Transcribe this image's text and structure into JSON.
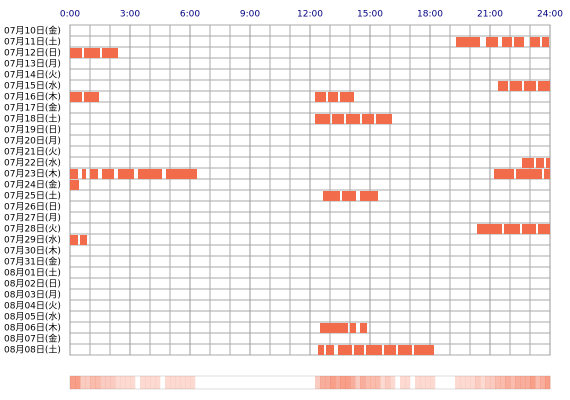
{
  "chart_data": {
    "type": "timeline",
    "xlim": [
      0,
      24
    ],
    "xticks": [
      {
        "value": 0,
        "label": "0:00"
      },
      {
        "value": 3,
        "label": "3:00"
      },
      {
        "value": 6,
        "label": "6:00"
      },
      {
        "value": 9,
        "label": "9:00"
      },
      {
        "value": 12,
        "label": "12:00"
      },
      {
        "value": 15,
        "label": "15:00"
      },
      {
        "value": 18,
        "label": "18:00"
      },
      {
        "value": 21,
        "label": "21:00"
      },
      {
        "value": 24,
        "label": "24:00"
      }
    ],
    "color": "#f26b4a",
    "grid": true,
    "rows": [
      {
        "label": "07月10日(金)",
        "segments": []
      },
      {
        "label": "07月11日(土)",
        "segments": [
          [
            19.3,
            20.5
          ],
          [
            20.8,
            21.4
          ],
          [
            21.6,
            22.1
          ],
          [
            22.2,
            22.7
          ],
          [
            23.0,
            23.5
          ],
          [
            23.6,
            23.95
          ]
        ]
      },
      {
        "label": "07月12日(日)",
        "segments": [
          [
            0,
            0.6
          ],
          [
            0.7,
            1.5
          ],
          [
            1.6,
            2.4
          ]
        ]
      },
      {
        "label": "07月13日(月)",
        "segments": []
      },
      {
        "label": "07月14日(火)",
        "segments": []
      },
      {
        "label": "07月15日(水)",
        "segments": [
          [
            21.4,
            21.9
          ],
          [
            22.0,
            22.6
          ],
          [
            22.7,
            23.3
          ],
          [
            23.4,
            24
          ]
        ]
      },
      {
        "label": "07月16日(木)",
        "segments": [
          [
            0,
            0.6
          ],
          [
            0.7,
            1.45
          ],
          [
            12.25,
            12.8
          ],
          [
            12.9,
            13.4
          ],
          [
            13.5,
            14.2
          ]
        ]
      },
      {
        "label": "07月17日(金)",
        "segments": []
      },
      {
        "label": "07月18日(土)",
        "segments": [
          [
            12.25,
            13.0
          ],
          [
            13.1,
            13.7
          ],
          [
            13.8,
            14.5
          ],
          [
            14.6,
            15.2
          ],
          [
            15.3,
            16.1
          ]
        ]
      },
      {
        "label": "07月19日(日)",
        "segments": []
      },
      {
        "label": "07月20日(月)",
        "segments": []
      },
      {
        "label": "07月21日(火)",
        "segments": []
      },
      {
        "label": "07月22日(水)",
        "segments": [
          [
            22.6,
            23.2
          ],
          [
            23.3,
            23.7
          ],
          [
            23.8,
            24
          ]
        ]
      },
      {
        "label": "07月23日(木)",
        "segments": [
          [
            0,
            0.4
          ],
          [
            0.6,
            0.8
          ],
          [
            1.0,
            1.4
          ],
          [
            1.6,
            2.2
          ],
          [
            2.4,
            3.2
          ],
          [
            3.4,
            4.6
          ],
          [
            4.8,
            6.35
          ],
          [
            21.2,
            22.2
          ],
          [
            22.3,
            23.6
          ],
          [
            23.7,
            24
          ]
        ]
      },
      {
        "label": "07月24日(金)",
        "segments": [
          [
            0,
            0.45
          ]
        ]
      },
      {
        "label": "07月25日(土)",
        "segments": [
          [
            12.65,
            13.5
          ],
          [
            13.6,
            14.3
          ],
          [
            14.5,
            15.4
          ]
        ]
      },
      {
        "label": "07月26日(日)",
        "segments": []
      },
      {
        "label": "07月27日(月)",
        "segments": []
      },
      {
        "label": "07月28日(火)",
        "segments": [
          [
            20.35,
            21.6
          ],
          [
            21.7,
            22.5
          ],
          [
            22.6,
            23.3
          ],
          [
            23.4,
            24
          ]
        ]
      },
      {
        "label": "07月29日(水)",
        "segments": [
          [
            0,
            0.4
          ],
          [
            0.5,
            0.85
          ]
        ]
      },
      {
        "label": "07月30日(木)",
        "segments": []
      },
      {
        "label": "07月31日(金)",
        "segments": []
      },
      {
        "label": "08月01日(土)",
        "segments": []
      },
      {
        "label": "08月02日(日)",
        "segments": []
      },
      {
        "label": "08月03日(月)",
        "segments": []
      },
      {
        "label": "08月04日(火)",
        "segments": []
      },
      {
        "label": "08月05日(水)",
        "segments": []
      },
      {
        "label": "08月06日(木)",
        "segments": [
          [
            12.5,
            13.9
          ],
          [
            14.0,
            14.3
          ],
          [
            14.5,
            14.85
          ]
        ]
      },
      {
        "label": "08月07日(金)",
        "segments": []
      },
      {
        "label": "08月08日(土)",
        "segments": [
          [
            12.4,
            12.7
          ],
          [
            12.8,
            13.2
          ],
          [
            13.4,
            14.1
          ],
          [
            14.2,
            14.7
          ],
          [
            14.8,
            15.6
          ],
          [
            15.7,
            16.3
          ],
          [
            16.4,
            17.1
          ],
          [
            17.2,
            18.2
          ]
        ]
      }
    ]
  }
}
